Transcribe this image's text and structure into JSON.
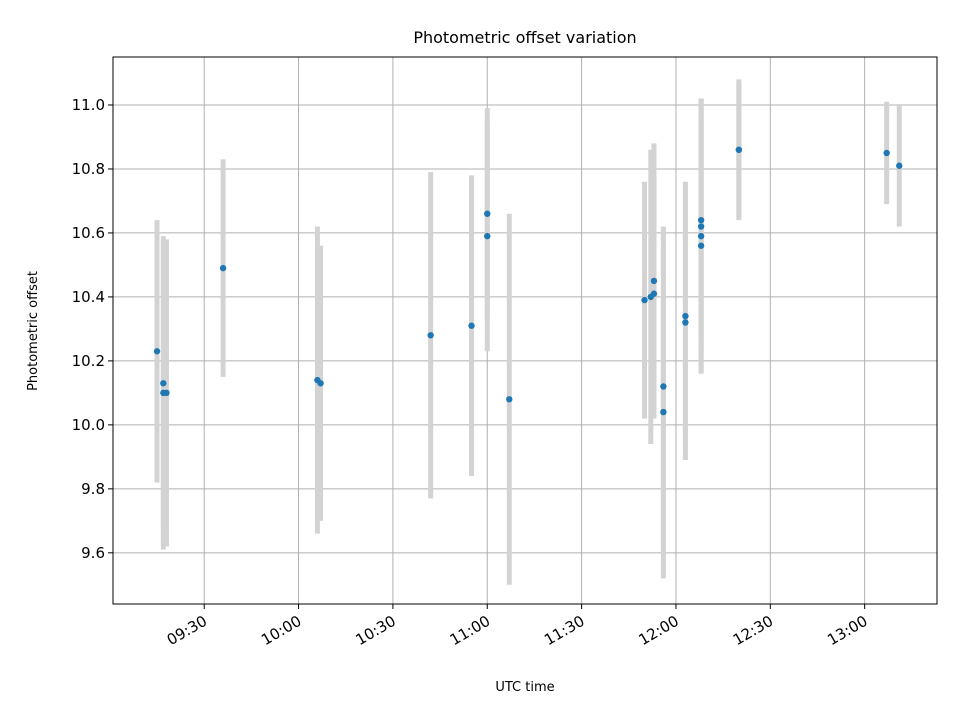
{
  "chart_data": {
    "type": "scatter",
    "title": "Photometric offset variation",
    "xlabel": "UTC time",
    "ylabel": "Photometric offset",
    "x_ticks": [
      "09:30",
      "10:00",
      "10:30",
      "11:00",
      "11:30",
      "12:00",
      "12:30",
      "13:00"
    ],
    "y_ticks": [
      "9.6",
      "9.8",
      "10.0",
      "10.2",
      "10.4",
      "10.6",
      "10.8",
      "11.0"
    ],
    "xlim": [
      "09:01",
      "13:23"
    ],
    "ylim": [
      9.44,
      11.15
    ],
    "grid": true,
    "colors": {
      "points": "#1f77b4",
      "errorbars": "#d3d3d3",
      "grid": "#b0b0b0"
    },
    "points": [
      {
        "x": "09:15",
        "y": 10.23,
        "err": 0.41
      },
      {
        "x": "09:17",
        "y": 10.13,
        "err": 0.45
      },
      {
        "x": "09:17",
        "y": 10.1,
        "err": 0.49
      },
      {
        "x": "09:18",
        "y": 10.1,
        "err": 0.48
      },
      {
        "x": "09:36",
        "y": 10.49,
        "err": 0.34
      },
      {
        "x": "10:06",
        "y": 10.14,
        "err": 0.48
      },
      {
        "x": "10:07",
        "y": 10.13,
        "err": 0.43
      },
      {
        "x": "10:42",
        "y": 10.28,
        "err": 0.51
      },
      {
        "x": "10:55",
        "y": 10.31,
        "err": 0.47
      },
      {
        "x": "11:00",
        "y": 10.66,
        "err": 0.33
      },
      {
        "x": "11:00",
        "y": 10.59,
        "err": 0.36
      },
      {
        "x": "11:07",
        "y": 10.08,
        "err": 0.58
      },
      {
        "x": "11:50",
        "y": 10.39,
        "err": 0.37
      },
      {
        "x": "11:52",
        "y": 10.4,
        "err": 0.46
      },
      {
        "x": "11:53",
        "y": 10.45,
        "err": 0.43
      },
      {
        "x": "11:53",
        "y": 10.41,
        "err": 0.37
      },
      {
        "x": "11:56",
        "y": 10.12,
        "err": 0.5
      },
      {
        "x": "11:56",
        "y": 10.04,
        "err": 0.52
      },
      {
        "x": "12:03",
        "y": 10.34,
        "err": 0.42
      },
      {
        "x": "12:03",
        "y": 10.32,
        "err": 0.43
      },
      {
        "x": "12:08",
        "y": 10.64,
        "err": 0.38
      },
      {
        "x": "12:08",
        "y": 10.59,
        "err": 0.43
      },
      {
        "x": "12:08",
        "y": 10.62,
        "err": 0.4
      },
      {
        "x": "12:08",
        "y": 10.56,
        "err": 0.4
      },
      {
        "x": "12:20",
        "y": 10.86,
        "err": 0.21
      },
      {
        "x": "12:20",
        "y": 10.86,
        "err": 0.22
      },
      {
        "x": "13:07",
        "y": 10.85,
        "err": 0.16
      },
      {
        "x": "13:11",
        "y": 10.81,
        "err": 0.19
      }
    ]
  }
}
